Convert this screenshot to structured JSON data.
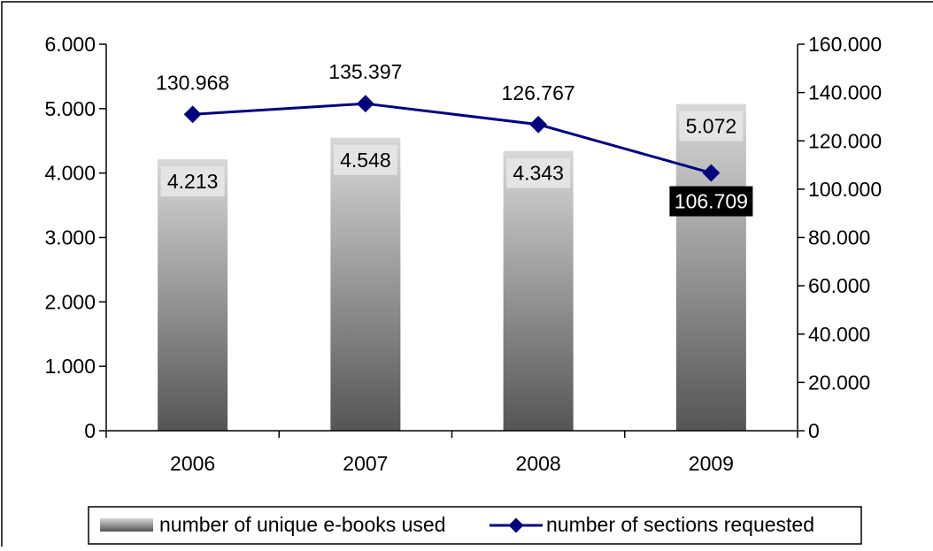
{
  "chart_data": {
    "type": "bar",
    "categories": [
      "2006",
      "2007",
      "2008",
      "2009"
    ],
    "series": [
      {
        "name": "number of unique e-books used",
        "type": "bar",
        "axis": "left",
        "values": [
          4213,
          4548,
          4343,
          5072
        ],
        "labels": [
          "4.213",
          "4.548",
          "4.343",
          "5.072"
        ]
      },
      {
        "name": "number of sections requested",
        "type": "line",
        "axis": "right",
        "marker": "diamond",
        "color": "#000080",
        "values": [
          130968,
          135397,
          126767,
          106709
        ],
        "labels": [
          "130.968",
          "135.397",
          "126.767",
          "106.709"
        ]
      }
    ],
    "y_left": {
      "min": 0,
      "max": 6000,
      "ticks": [
        0,
        1000,
        2000,
        3000,
        4000,
        5000,
        6000
      ],
      "tick_labels": [
        "0",
        "1.000",
        "2.000",
        "3.000",
        "4.000",
        "5.000",
        "6.000"
      ]
    },
    "y_right": {
      "min": 0,
      "max": 160000,
      "ticks": [
        0,
        20000,
        40000,
        60000,
        80000,
        100000,
        120000,
        140000,
        160000
      ],
      "tick_labels": [
        "0",
        "20.000",
        "40.000",
        "60.000",
        "80.000",
        "100.000",
        "120.000",
        "140.000",
        "160.000"
      ]
    },
    "grid": false,
    "legend": "bottom"
  }
}
